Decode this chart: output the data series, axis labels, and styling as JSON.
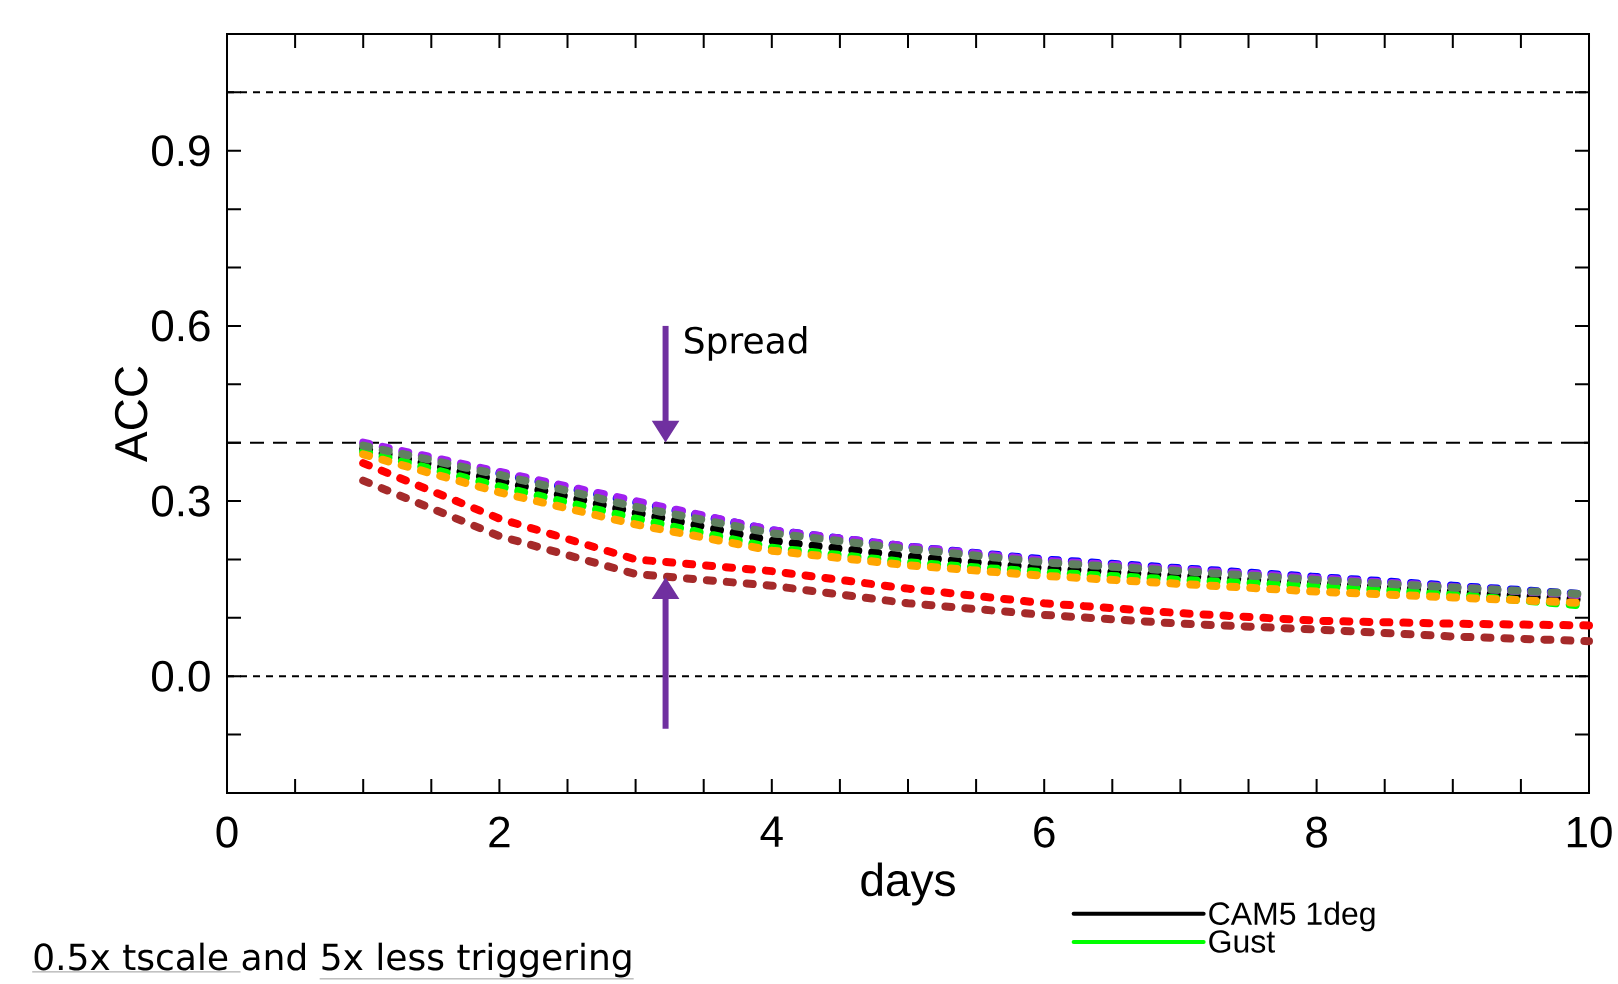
{
  "chart_data": {
    "type": "line",
    "xlabel": "days",
    "ylabel": "ACC",
    "x": [
      1,
      2,
      3,
      4,
      5,
      6,
      7,
      8,
      9,
      10
    ],
    "series": [
      {
        "name": "CAM5 1deg",
        "color": "#000000",
        "values": [
          0.39,
          0.335,
          0.28,
          0.232,
          0.205,
          0.185,
          0.172,
          0.16,
          0.145,
          0.13
        ]
      },
      {
        "name": "Gust",
        "color": "#00ff00",
        "values": [
          0.385,
          0.325,
          0.27,
          0.22,
          0.195,
          0.178,
          0.165,
          0.155,
          0.14,
          0.12
        ]
      },
      {
        "color": "#0000ff",
        "values": [
          null,
          0.348,
          0.298,
          0.25,
          0.222,
          0.2,
          0.185,
          0.17,
          0.155,
          0.14
        ]
      },
      {
        "color": "#a020f0",
        "values": [
          0.4,
          0.35,
          0.3,
          0.25,
          0.222,
          0.198,
          0.183,
          0.168,
          0.153,
          0.138
        ]
      },
      {
        "color": "#ffa500",
        "values": [
          0.38,
          0.315,
          0.26,
          0.215,
          0.19,
          0.172,
          0.158,
          0.145,
          0.135,
          0.125
        ]
      },
      {
        "color": "#608060",
        "values": [
          0.395,
          0.345,
          0.29,
          0.245,
          0.218,
          0.195,
          0.18,
          0.165,
          0.152,
          0.14
        ]
      },
      {
        "color": "#ff0000",
        "values": [
          0.365,
          0.27,
          0.2,
          0.18,
          0.15,
          0.125,
          0.108,
          0.095,
          0.09,
          0.087
        ]
      },
      {
        "color": "#a52a2a",
        "values": [
          0.335,
          0.24,
          0.175,
          0.155,
          0.125,
          0.105,
          0.09,
          0.08,
          0.068,
          0.06
        ]
      }
    ],
    "xlim": [
      0,
      10
    ],
    "ylim": [
      -0.2,
      1.1
    ],
    "xticks": [
      0,
      {
        "value": 0.5,
        "label": null
      },
      {
        "value": 1,
        "label": null
      },
      {
        "value": 1.5,
        "label": null
      },
      2,
      {
        "value": 2.5,
        "label": null
      },
      {
        "value": 3,
        "label": null
      },
      {
        "value": 3.5,
        "label": null
      },
      4,
      {
        "value": 4.5,
        "label": null
      },
      {
        "value": 5,
        "label": null
      },
      {
        "value": 5.5,
        "label": null
      },
      6,
      {
        "value": 6.5,
        "label": null
      },
      {
        "value": 7,
        "label": null
      },
      {
        "value": 7.5,
        "label": null
      },
      8,
      {
        "value": 8.5,
        "label": null
      },
      {
        "value": 9,
        "label": null
      },
      {
        "value": 9.5,
        "label": null
      },
      10
    ],
    "yticks": [
      {
        "value": -0.2,
        "label": null
      },
      {
        "value": -0.1,
        "label": null
      },
      {
        "value": 0,
        "label": "0.0"
      },
      {
        "value": 0.1,
        "label": null
      },
      {
        "value": 0.2,
        "label": null
      },
      0.3,
      {
        "value": 0.4,
        "label": null
      },
      {
        "value": 0.5,
        "label": null
      },
      0.6,
      {
        "value": 0.7,
        "label": null
      },
      {
        "value": 0.8,
        "label": null
      },
      0.9,
      {
        "value": 1.0,
        "label": null
      },
      {
        "value": 1.1,
        "label": null
      }
    ],
    "ref_lines": [
      {
        "axis": "y",
        "value": 1.0,
        "line_style": "dotted"
      },
      {
        "axis": "y",
        "value": 0.4,
        "line_style": "dashed"
      },
      {
        "axis": "y",
        "value": 0,
        "line_style": "dotted"
      }
    ],
    "annotations": [
      "Spread",
      "0.5x tscale ",
      "and ",
      "5x less triggering"
    ],
    "line_style": "dashed",
    "marker": "none",
    "grid": false,
    "legend": "bottom"
  }
}
